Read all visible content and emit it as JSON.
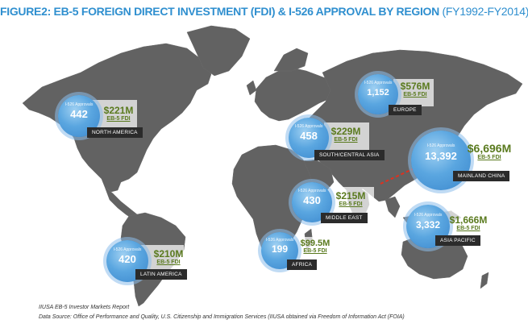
{
  "title": {
    "main": "FIGURE2: EB-5 FOREIGN DIRECT INVESTMENT (FDI) & I-526 APPROVAL BY REGION",
    "period": "(FY1992-FY2014)"
  },
  "bubble_caption": "I-526 Approvals",
  "fdi_label": "EB-5 FDI",
  "regions": {
    "north_america": {
      "name": "NORTH AMERICA",
      "approvals": "442",
      "fdi": "$221M"
    },
    "latin_america": {
      "name": "LATIN AMERICA",
      "approvals": "420",
      "fdi": "$210M"
    },
    "europe": {
      "name": "EUROPE",
      "approvals": "1,152",
      "fdi": "$576M"
    },
    "south_central_asia": {
      "name": "SOUTH/CENTRAL ASIA",
      "approvals": "458",
      "fdi": "$229M"
    },
    "middle_east": {
      "name": "MIDDLE EAST",
      "approvals": "430",
      "fdi": "$215M"
    },
    "africa": {
      "name": "AFRICA",
      "approvals": "199",
      "fdi": "$99.5M"
    },
    "mainland_china": {
      "name": "MAINLAND CHINA",
      "approvals": "13,392",
      "fdi": "$6,696M"
    },
    "asia_pacific": {
      "name": "ASIA PACIFIC",
      "approvals": "3,332",
      "fdi": "$1,666M"
    }
  },
  "footer": {
    "line1": "IIUSA EB-5 Investor Markets Report",
    "line2": "Data Source: Office of Performance and Quality, U.S. Citizenship and Immigration Services (IIUSA obtained via Freedom of Information Act (FOIA)"
  },
  "colors": {
    "title": "#2f8fcf",
    "land": "#5f5f5f",
    "bubble": "#4a96d6",
    "fdi_text": "#5a7a1e",
    "tag_bg": "#2b2b2b",
    "arrow": "#e0301e"
  }
}
